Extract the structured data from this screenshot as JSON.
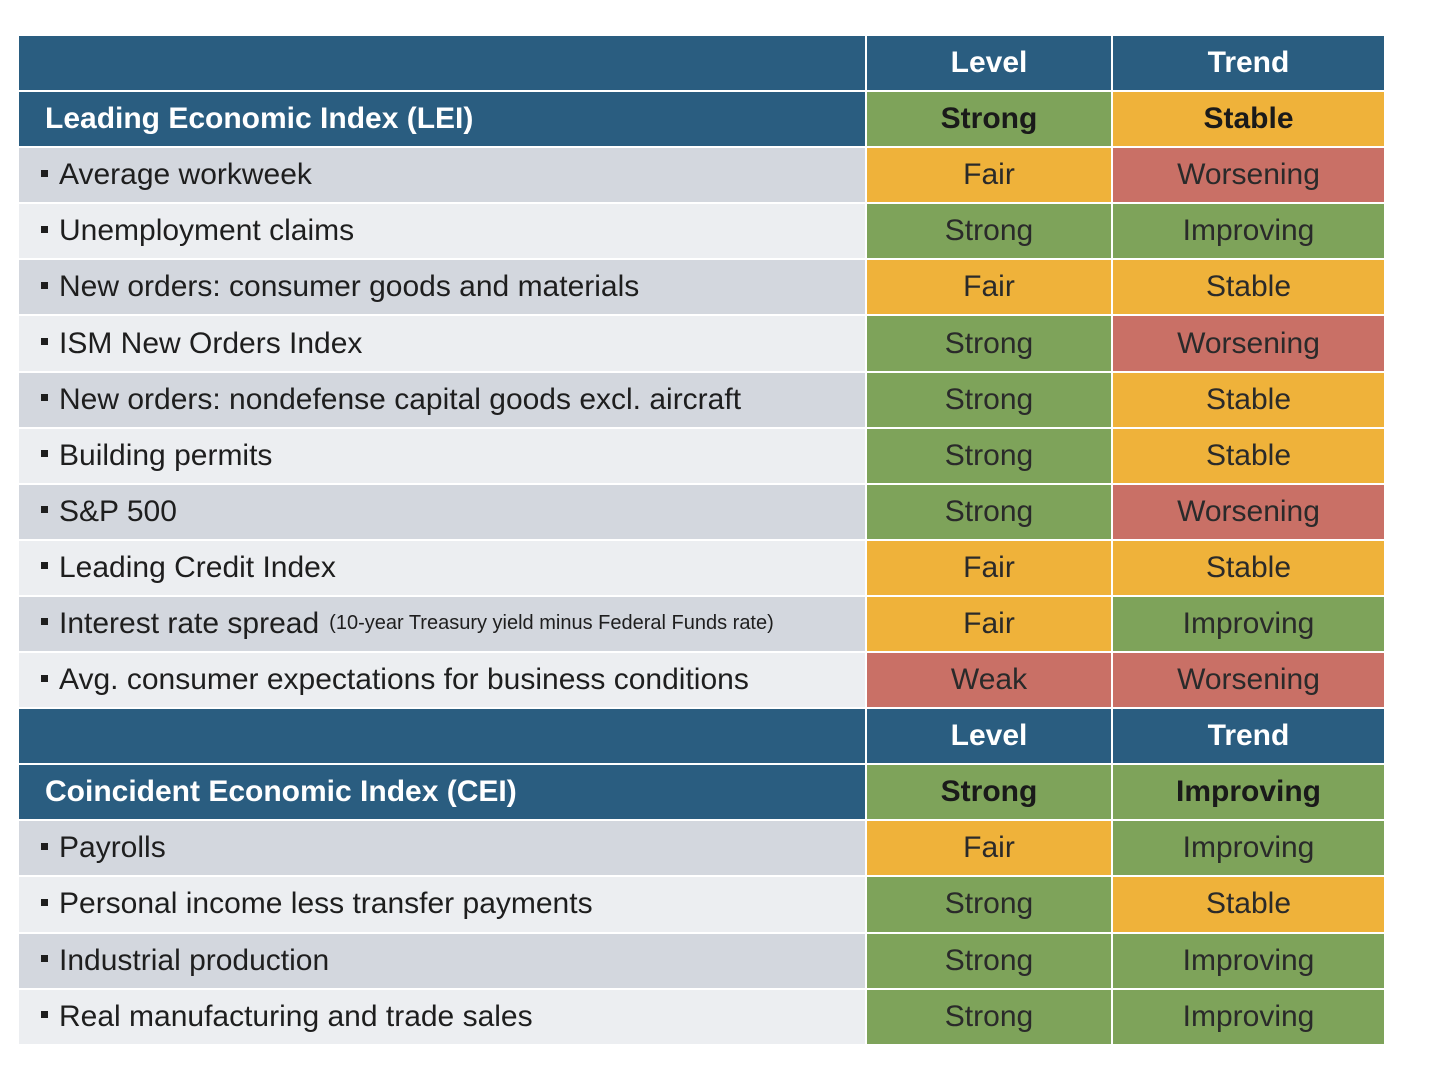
{
  "colors": {
    "header": "#2a5d80",
    "Strong": "#7ea35a",
    "Improving": "#7ea35a",
    "Fair": "#efb23a",
    "Stable": "#efb23a",
    "Weak": "#c97066",
    "Worsening": "#c97066",
    "row_shade_a": "#d3d7de",
    "row_shade_b": "#eceef1"
  },
  "chart_data": {
    "type": "table",
    "columns": [
      "",
      "Level",
      "Trend"
    ],
    "sections": [
      {
        "columns": [
          "Level",
          "Trend"
        ],
        "index": {
          "label": "Leading Economic Index (LEI)",
          "level": "Strong",
          "trend": "Stable"
        },
        "rows": [
          {
            "label": "Average workweek",
            "note": "",
            "level": "Fair",
            "trend": "Worsening"
          },
          {
            "label": "Unemployment claims",
            "note": "",
            "level": "Strong",
            "trend": "Improving"
          },
          {
            "label": "New orders: consumer goods and materials",
            "note": "",
            "level": "Fair",
            "trend": "Stable"
          },
          {
            "label": "ISM New Orders Index",
            "note": "",
            "level": "Strong",
            "trend": "Worsening"
          },
          {
            "label": "New orders: nondefense capital goods excl. aircraft",
            "note": "",
            "level": "Strong",
            "trend": "Stable"
          },
          {
            "label": "Building permits",
            "note": "",
            "level": "Strong",
            "trend": "Stable"
          },
          {
            "label": "S&P 500",
            "note": "",
            "level": "Strong",
            "trend": "Worsening"
          },
          {
            "label": "Leading Credit Index",
            "note": "",
            "level": "Fair",
            "trend": "Stable"
          },
          {
            "label": "Interest rate spread",
            "note": "(10-year Treasury yield minus Federal Funds rate)",
            "level": "Fair",
            "trend": "Improving"
          },
          {
            "label": "Avg. consumer expectations for business conditions",
            "note": "",
            "level": "Weak",
            "trend": "Worsening"
          }
        ]
      },
      {
        "columns": [
          "Level",
          "Trend"
        ],
        "index": {
          "label": "Coincident Economic Index (CEI)",
          "level": "Strong",
          "trend": "Improving"
        },
        "rows": [
          {
            "label": "Payrolls",
            "note": "",
            "level": "Fair",
            "trend": "Improving"
          },
          {
            "label": "Personal income less transfer payments",
            "note": "",
            "level": "Strong",
            "trend": "Stable"
          },
          {
            "label": "Industrial production",
            "note": "",
            "level": "Strong",
            "trend": "Improving"
          },
          {
            "label": "Real manufacturing and trade sales",
            "note": "",
            "level": "Strong",
            "trend": "Improving"
          }
        ]
      }
    ]
  }
}
